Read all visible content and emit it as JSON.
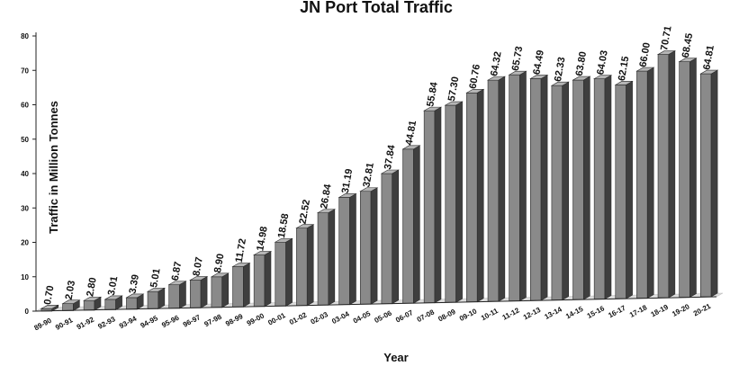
{
  "chart_data": {
    "type": "bar",
    "title": "JN Port Total Traffic",
    "xlabel": "Year",
    "ylabel": "Traffic in Million Tonnes",
    "ylim": [
      0,
      80
    ],
    "yticks": [
      0,
      10,
      20,
      30,
      40,
      50,
      60,
      70,
      80
    ],
    "grid": false,
    "legend": "none",
    "categories": [
      "89-90",
      "90-91",
      "91-92",
      "92-93",
      "93-94",
      "94-95",
      "95-96",
      "96-97",
      "97-98",
      "98-99",
      "99-00",
      "00-01",
      "01-02",
      "02-03",
      "03-04",
      "04-05",
      "05-06",
      "06-07",
      "07-08",
      "08-09",
      "09-10",
      "10-11",
      "11-12",
      "12-13",
      "13-14",
      "14-15",
      "15-16",
      "16-17",
      "17-18",
      "18-19",
      "19-20",
      "20-21"
    ],
    "value_labels": [
      "0.70",
      "2.03",
      "2.80",
      "3.01",
      "3.39",
      "5.01",
      "6.87",
      "8.07",
      "8.90",
      "11.72",
      "14.98",
      "18.58",
      "22.52",
      "26.84",
      "31.19",
      "32.81",
      "37.84",
      "44.81",
      "55.84",
      "57.30",
      "60.76",
      "64.32",
      "65.73",
      "64.49",
      "62.33",
      "63.80",
      "64.03",
      "62.15",
      "66.00",
      "70.71",
      "68.45",
      "64.81"
    ],
    "values": [
      0.7,
      2.03,
      2.8,
      3.01,
      3.39,
      5.01,
      6.87,
      8.07,
      8.9,
      11.72,
      14.98,
      18.58,
      22.52,
      26.84,
      31.19,
      32.81,
      37.84,
      44.81,
      55.84,
      57.3,
      60.76,
      64.32,
      65.73,
      64.49,
      62.33,
      63.8,
      64.03,
      62.15,
      66.0,
      70.71,
      68.45,
      64.81
    ],
    "colors": {
      "bar_front": "#8a8a8a",
      "bar_side": "#3f3f3f",
      "bar_top": "#b5b5b5",
      "floor": "#dcdcdc",
      "axis": "#222222"
    }
  }
}
